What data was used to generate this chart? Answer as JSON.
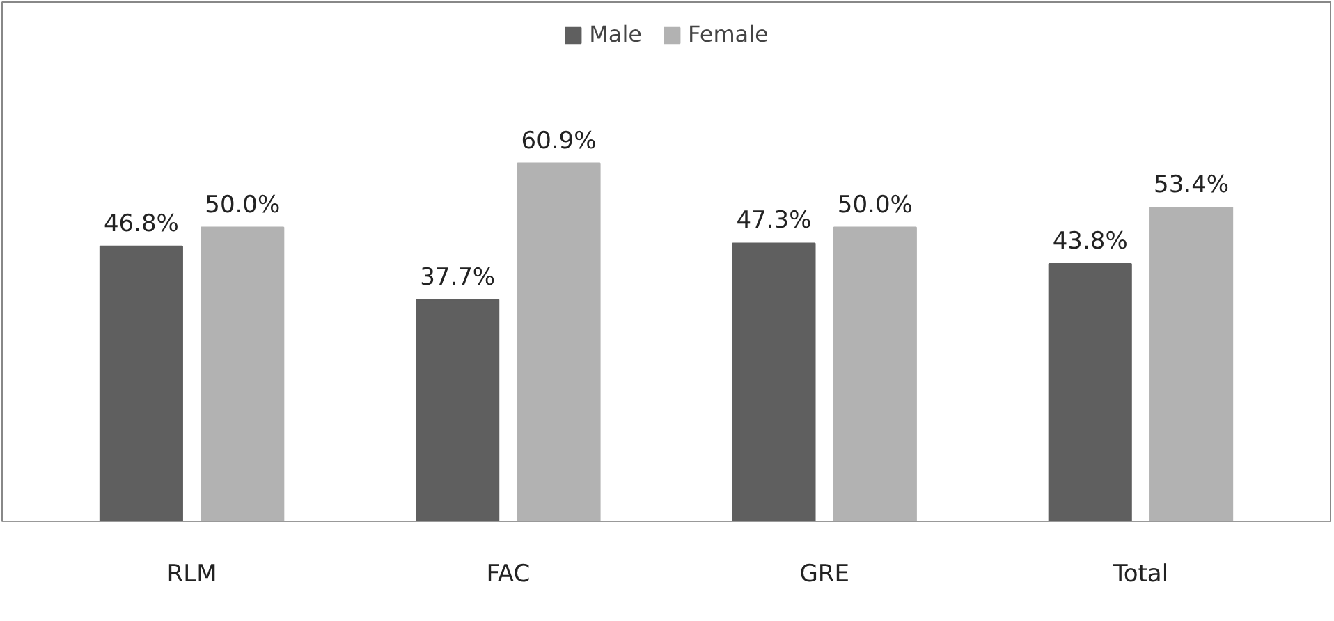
{
  "chart_data": {
    "type": "bar",
    "categories": [
      "RLM",
      "FAC",
      "GRE",
      "Total"
    ],
    "series": [
      {
        "name": "Male",
        "color": "#5f5f5f",
        "values": [
          46.8,
          37.7,
          47.3,
          43.8
        ],
        "value_labels": [
          "46.8%",
          "37.7%",
          "47.3%",
          "43.8%"
        ]
      },
      {
        "name": "Female",
        "color": "#b2b2b2",
        "values": [
          50.0,
          60.9,
          50.0,
          53.4
        ],
        "value_labels": [
          "50.0%",
          "60.9%",
          "50.0%",
          "53.4%"
        ]
      }
    ],
    "legend": "top",
    "grid": false
  }
}
